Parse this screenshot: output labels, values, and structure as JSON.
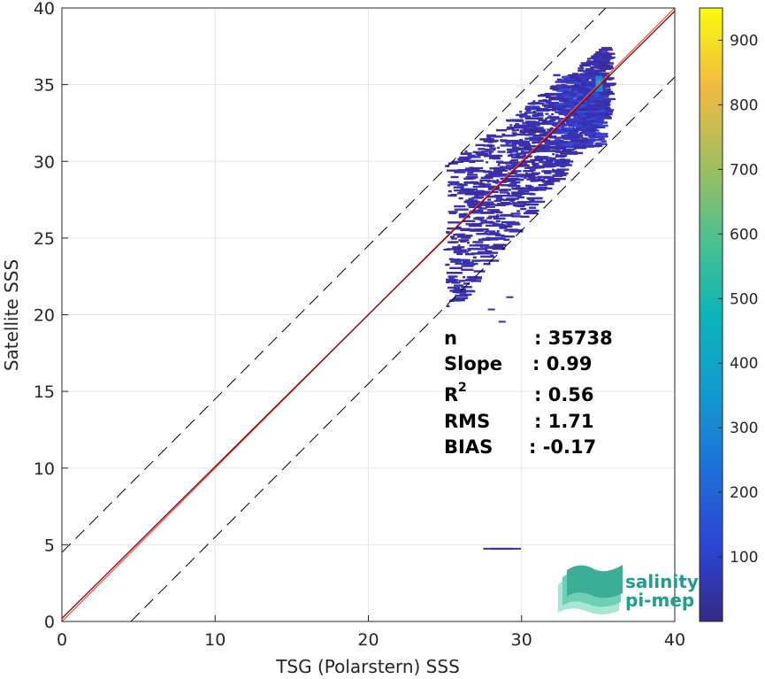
{
  "chart_data": {
    "type": "heatmap",
    "xlabel": "TSG (Polarstern) SSS",
    "ylabel": "Satellite SSS",
    "xlim": [
      0,
      40
    ],
    "ylim": [
      0,
      40
    ],
    "xticks": [
      "0",
      "10",
      "20",
      "30",
      "40"
    ],
    "yticks": [
      "0",
      "5",
      "10",
      "15",
      "20",
      "25",
      "30",
      "35",
      "40"
    ],
    "grid": true,
    "colorbar": {
      "range": [
        0,
        950
      ],
      "ticks": [
        "100",
        "200",
        "300",
        "400",
        "500",
        "600",
        "700",
        "800",
        "900"
      ],
      "colormap": "parula"
    },
    "reference_lines": [
      {
        "kind": "identity",
        "slope": 1,
        "intercept": 0,
        "color": "#d9534f",
        "style": "solid"
      },
      {
        "kind": "regression",
        "slope": 0.99,
        "intercept": 0.2,
        "color": "#8b0000",
        "style": "solid"
      },
      {
        "kind": "offset",
        "slope": 1,
        "intercept": 4.5,
        "color": "#000000",
        "style": "dashed"
      },
      {
        "kind": "offset",
        "slope": 1,
        "intercept": -4.5,
        "color": "#000000",
        "style": "dashed"
      }
    ],
    "density_cloud": {
      "x_range": [
        25,
        35.5
      ],
      "y_range": [
        19.5,
        38.5
      ],
      "peak": {
        "x": 35,
        "y": 35,
        "count": 300
      },
      "typical_count": 20
    },
    "stats": [
      {
        "label": "n",
        "value": ": 35738"
      },
      {
        "label": "Slope",
        "value": ": 0.99"
      },
      {
        "label": "R",
        "sup": "2",
        "value": ": 0.56"
      },
      {
        "label": "RMS",
        "value": ": 1.71"
      },
      {
        "label": "BIAS",
        "value": ": -0.17"
      }
    ]
  },
  "logo": {
    "line1": "salinity",
    "line2": "pi-mep"
  }
}
